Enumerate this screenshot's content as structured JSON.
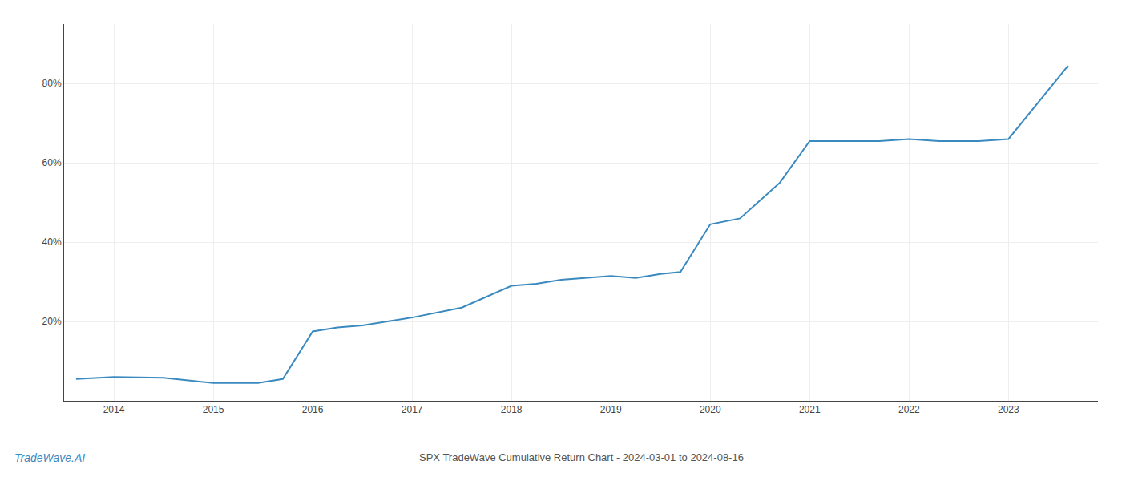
{
  "chart_data": {
    "type": "line",
    "title": "SPX TradeWave Cumulative Return Chart - 2024-03-01 to 2024-08-16",
    "annotations": [
      "TradeWave.AI"
    ],
    "x": [
      2013.62,
      2014.0,
      2014.5,
      2015.0,
      2015.45,
      2015.7,
      2016.0,
      2016.25,
      2016.5,
      2017.0,
      2017.5,
      2018.0,
      2018.25,
      2018.5,
      2019.0,
      2019.25,
      2019.5,
      2019.7,
      2020.0,
      2020.3,
      2020.7,
      2021.0,
      2021.3,
      2021.7,
      2022.0,
      2022.3,
      2022.7,
      2023.0,
      2023.6
    ],
    "values": [
      5.5,
      6.0,
      5.8,
      4.5,
      4.5,
      5.5,
      17.5,
      18.5,
      19.0,
      21.0,
      23.5,
      29.0,
      29.5,
      30.5,
      31.5,
      31.0,
      32.0,
      32.5,
      44.5,
      46.0,
      55.0,
      65.5,
      65.5,
      65.5,
      66.0,
      65.5,
      65.5,
      66.0,
      84.5
    ],
    "color": "#3a8abf",
    "xlim": [
      2013.5,
      2023.9
    ],
    "ylim": [
      0,
      95
    ],
    "xticks": [
      2014,
      2015,
      2016,
      2017,
      2018,
      2019,
      2020,
      2021,
      2022,
      2023
    ],
    "yticks": [
      {
        "value": 20,
        "label": "20%"
      },
      {
        "value": 40,
        "label": "40%"
      },
      {
        "value": 60,
        "label": "60%"
      },
      {
        "value": 80,
        "label": "80%"
      }
    ],
    "grid": true
  }
}
